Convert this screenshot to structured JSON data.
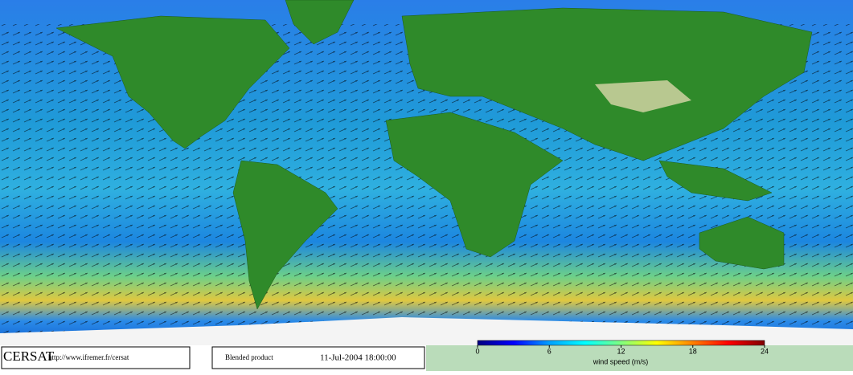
{
  "header": {
    "logo": "CERSAT",
    "url": "http://www.ifremer.fr/cersat",
    "product": "Blended product",
    "datetime": "11-Jul-2004 18:00:00"
  },
  "colorbar": {
    "label": "wind speed (m/s)",
    "lim": [
      0,
      24
    ],
    "ticks": [
      0,
      6,
      12,
      18,
      24
    ],
    "colors": [
      "#000080",
      "#0000ff",
      "#00a0ff",
      "#00ffff",
      "#80ff80",
      "#ffff00",
      "#ff8000",
      "#ff0000",
      "#800000"
    ]
  }
}
